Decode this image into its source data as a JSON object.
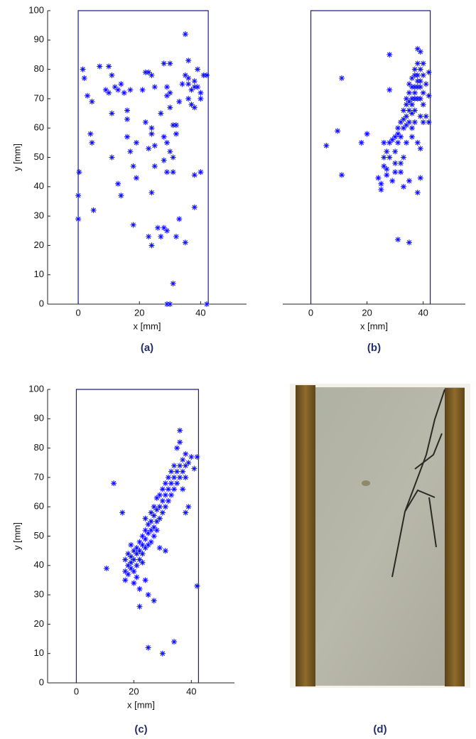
{
  "chart_data": [
    {
      "type": "scatter",
      "caption": "(a)",
      "xlabel": "x [mm]",
      "ylabel": "y [mm]",
      "xlim": [
        -10,
        55
      ],
      "ylim": [
        0,
        100
      ],
      "xticks": [
        0,
        20,
        40
      ],
      "yticks": [
        0,
        10,
        20,
        30,
        40,
        50,
        60,
        70,
        80,
        90,
        100
      ],
      "color": "#1010ff",
      "outline_color": "#1c1c8c",
      "outline": [
        [
          0,
          0
        ],
        [
          0,
          100
        ],
        [
          42.5,
          100
        ],
        [
          42.5,
          0
        ]
      ],
      "points": [
        [
          0.3,
          45
        ],
        [
          0,
          37
        ],
        [
          0,
          29
        ],
        [
          5,
          32
        ],
        [
          4,
          58
        ],
        [
          4.5,
          55
        ],
        [
          1.5,
          80
        ],
        [
          2,
          77
        ],
        [
          3,
          71
        ],
        [
          4.5,
          69
        ],
        [
          7,
          81
        ],
        [
          10,
          81
        ],
        [
          11,
          78
        ],
        [
          9,
          73
        ],
        [
          10,
          72
        ],
        [
          12,
          74
        ],
        [
          13,
          73
        ],
        [
          15,
          72
        ],
        [
          14,
          75
        ],
        [
          17,
          73
        ],
        [
          11,
          65
        ],
        [
          16,
          66
        ],
        [
          16,
          63
        ],
        [
          11,
          50
        ],
        [
          13,
          41
        ],
        [
          14,
          37
        ],
        [
          16,
          57
        ],
        [
          17,
          52
        ],
        [
          18,
          47
        ],
        [
          18,
          27
        ],
        [
          19,
          43
        ],
        [
          19,
          55
        ],
        [
          21,
          73
        ],
        [
          22,
          79
        ],
        [
          23,
          79
        ],
        [
          24,
          78
        ],
        [
          25,
          74
        ],
        [
          22,
          62
        ],
        [
          24,
          60
        ],
        [
          24,
          58
        ],
        [
          23,
          53
        ],
        [
          25,
          54
        ],
        [
          25,
          47
        ],
        [
          24,
          38
        ],
        [
          24,
          20
        ],
        [
          23,
          23
        ],
        [
          26,
          26
        ],
        [
          27,
          23
        ],
        [
          28,
          26
        ],
        [
          29,
          25
        ],
        [
          28,
          82
        ],
        [
          30,
          82
        ],
        [
          29,
          74
        ],
        [
          29,
          71
        ],
        [
          30,
          72
        ],
        [
          27,
          65
        ],
        [
          30,
          67
        ],
        [
          28,
          57
        ],
        [
          29,
          55
        ],
        [
          28,
          49
        ],
        [
          29,
          45
        ],
        [
          31,
          50
        ],
        [
          31,
          61
        ],
        [
          32,
          61
        ],
        [
          30,
          52
        ],
        [
          31,
          45
        ],
        [
          32,
          58
        ],
        [
          33,
          69
        ],
        [
          31,
          7
        ],
        [
          29,
          0
        ],
        [
          30,
          0
        ],
        [
          32,
          23
        ],
        [
          33,
          29
        ],
        [
          35,
          21
        ],
        [
          35,
          92
        ],
        [
          36,
          83
        ],
        [
          35,
          78
        ],
        [
          36,
          75
        ],
        [
          37,
          73
        ],
        [
          38,
          74
        ],
        [
          39,
          74
        ],
        [
          40,
          72
        ],
        [
          38,
          76
        ],
        [
          39,
          80
        ],
        [
          41,
          78
        ],
        [
          42,
          78
        ],
        [
          37,
          68
        ],
        [
          38,
          67
        ],
        [
          36,
          70
        ],
        [
          40,
          70
        ],
        [
          40,
          45
        ],
        [
          38,
          44
        ],
        [
          38,
          33
        ],
        [
          42,
          0
        ],
        [
          34,
          75
        ],
        [
          36,
          77
        ]
      ]
    },
    {
      "type": "scatter",
      "caption": "(b)",
      "xlabel": "x [mm]",
      "xlim": [
        -10,
        55
      ],
      "ylim": [
        0,
        100
      ],
      "xticks": [
        0,
        20,
        40
      ],
      "color": "#1010ff",
      "outline_color": "#1c1c8c",
      "outline": [
        [
          0,
          0
        ],
        [
          0,
          100
        ],
        [
          42.5,
          100
        ],
        [
          42.5,
          0
        ]
      ],
      "points": [
        [
          5.5,
          54
        ],
        [
          9.5,
          59
        ],
        [
          11,
          77
        ],
        [
          11,
          44
        ],
        [
          18,
          55
        ],
        [
          20,
          58
        ],
        [
          24,
          43
        ],
        [
          25,
          41
        ],
        [
          25,
          39
        ],
        [
          26,
          47
        ],
        [
          26,
          50
        ],
        [
          27,
          52
        ],
        [
          27,
          46
        ],
        [
          28,
          55
        ],
        [
          28,
          50
        ],
        [
          28,
          73
        ],
        [
          28,
          85
        ],
        [
          29,
          42
        ],
        [
          29,
          56
        ],
        [
          30,
          57
        ],
        [
          30,
          52
        ],
        [
          30,
          48
        ],
        [
          31,
          60
        ],
        [
          31,
          55
        ],
        [
          31,
          58
        ],
        [
          32,
          62
        ],
        [
          32,
          57
        ],
        [
          32,
          48
        ],
        [
          32,
          45
        ],
        [
          33,
          63
        ],
        [
          33,
          60
        ],
        [
          33,
          66
        ],
        [
          33,
          40
        ],
        [
          34,
          64
        ],
        [
          34,
          68
        ],
        [
          34,
          70
        ],
        [
          34,
          61
        ],
        [
          35,
          72
        ],
        [
          35,
          66
        ],
        [
          35,
          69
        ],
        [
          35,
          62
        ],
        [
          35,
          75
        ],
        [
          35,
          42
        ],
        [
          36,
          70
        ],
        [
          36,
          74
        ],
        [
          36,
          77
        ],
        [
          36,
          68
        ],
        [
          36,
          65
        ],
        [
          36,
          60
        ],
        [
          37,
          72
        ],
        [
          37,
          78
        ],
        [
          37,
          80
        ],
        [
          37,
          74
        ],
        [
          37,
          70
        ],
        [
          37,
          66
        ],
        [
          38,
          76
        ],
        [
          38,
          82
        ],
        [
          38,
          70
        ],
        [
          38,
          74
        ],
        [
          38,
          78
        ],
        [
          38,
          87
        ],
        [
          38,
          55
        ],
        [
          38,
          38
        ],
        [
          39,
          80
        ],
        [
          39,
          74
        ],
        [
          39,
          70
        ],
        [
          39,
          76
        ],
        [
          39,
          86
        ],
        [
          39,
          43
        ],
        [
          39,
          53
        ],
        [
          40,
          78
        ],
        [
          40,
          72
        ],
        [
          40,
          68
        ],
        [
          40,
          82
        ],
        [
          41,
          75
        ],
        [
          41,
          64
        ],
        [
          42,
          62
        ],
        [
          42,
          79
        ],
        [
          42,
          71
        ],
        [
          31,
          22
        ],
        [
          35,
          21
        ],
        [
          26,
          55
        ],
        [
          27,
          44
        ],
        [
          30,
          45
        ],
        [
          33,
          50
        ],
        [
          34,
          55
        ],
        [
          37,
          62
        ],
        [
          36,
          57
        ],
        [
          39,
          64
        ],
        [
          40,
          62
        ]
      ]
    },
    {
      "type": "scatter",
      "caption": "(c)",
      "xlabel": "x [mm]",
      "ylabel": "y [mm]",
      "xlim": [
        -10,
        55
      ],
      "ylim": [
        0,
        100
      ],
      "xticks": [
        0,
        20,
        40
      ],
      "yticks": [
        0,
        10,
        20,
        30,
        40,
        50,
        60,
        70,
        80,
        90,
        100
      ],
      "color": "#1010ff",
      "outline_color": "#1c1c8c",
      "outline": [
        [
          0,
          0
        ],
        [
          0,
          100
        ],
        [
          42.5,
          100
        ],
        [
          42.5,
          0
        ]
      ],
      "points": [
        [
          10.5,
          39
        ],
        [
          13,
          68
        ],
        [
          16,
          58
        ],
        [
          17,
          42
        ],
        [
          17,
          38
        ],
        [
          17,
          35
        ],
        [
          18,
          40
        ],
        [
          18,
          44
        ],
        [
          18,
          37
        ],
        [
          19,
          43
        ],
        [
          19,
          41
        ],
        [
          19,
          39
        ],
        [
          19,
          47
        ],
        [
          20,
          45
        ],
        [
          20,
          42
        ],
        [
          20,
          38
        ],
        [
          20,
          34
        ],
        [
          21,
          46
        ],
        [
          21,
          44
        ],
        [
          21,
          40
        ],
        [
          21,
          36
        ],
        [
          22,
          48
        ],
        [
          22,
          45
        ],
        [
          22,
          42
        ],
        [
          22,
          26
        ],
        [
          22,
          32
        ],
        [
          23,
          50
        ],
        [
          23,
          47
        ],
        [
          23,
          44
        ],
        [
          23,
          41
        ],
        [
          24,
          52
        ],
        [
          24,
          49
        ],
        [
          24,
          46
        ],
        [
          24,
          56
        ],
        [
          24,
          35
        ],
        [
          25,
          54
        ],
        [
          25,
          51
        ],
        [
          25,
          47
        ],
        [
          25,
          12
        ],
        [
          25,
          30
        ],
        [
          26,
          55
        ],
        [
          26,
          52
        ],
        [
          26,
          48
        ],
        [
          26,
          58
        ],
        [
          27,
          57
        ],
        [
          27,
          53
        ],
        [
          27,
          50
        ],
        [
          27,
          60
        ],
        [
          27,
          28
        ],
        [
          28,
          59
        ],
        [
          28,
          55
        ],
        [
          28,
          52
        ],
        [
          28,
          63
        ],
        [
          29,
          60
        ],
        [
          29,
          56
        ],
        [
          29,
          64
        ],
        [
          29,
          46
        ],
        [
          30,
          62
        ],
        [
          30,
          58
        ],
        [
          30,
          66
        ],
        [
          30,
          10
        ],
        [
          31,
          64
        ],
        [
          31,
          60
        ],
        [
          31,
          68
        ],
        [
          31,
          45
        ],
        [
          32,
          66
        ],
        [
          32,
          62
        ],
        [
          32,
          70
        ],
        [
          33,
          68
        ],
        [
          33,
          64
        ],
        [
          33,
          72
        ],
        [
          34,
          70
        ],
        [
          34,
          66
        ],
        [
          34,
          74
        ],
        [
          34,
          14
        ],
        [
          35,
          72
        ],
        [
          35,
          68
        ],
        [
          35,
          80
        ],
        [
          36,
          74
        ],
        [
          36,
          70
        ],
        [
          36,
          82
        ],
        [
          36,
          86
        ],
        [
          37,
          76
        ],
        [
          37,
          72
        ],
        [
          37,
          66
        ],
        [
          38,
          78
        ],
        [
          38,
          74
        ],
        [
          38,
          70
        ],
        [
          39,
          75
        ],
        [
          40,
          77
        ],
        [
          41,
          73
        ],
        [
          42,
          77
        ],
        [
          42,
          33
        ],
        [
          39,
          60
        ],
        [
          38,
          58
        ]
      ]
    }
  ],
  "photo": {
    "caption": "(d)"
  }
}
